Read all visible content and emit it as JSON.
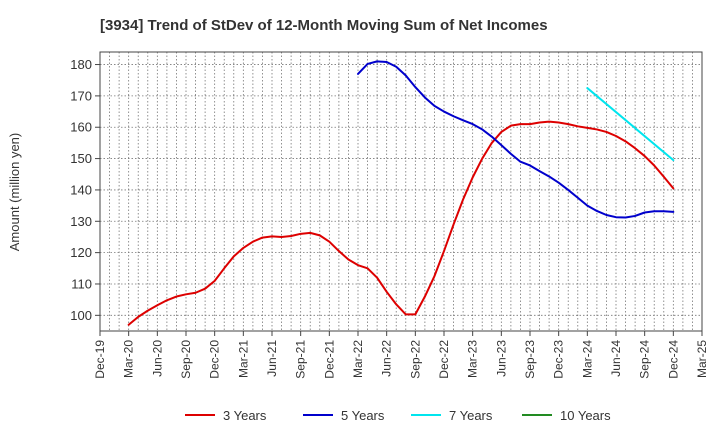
{
  "chart_data": {
    "type": "line",
    "title": "[3934]  Trend of StDev of 12-Month Moving Sum of Net Incomes",
    "xlabel": "",
    "ylabel": "Amount (million yen)",
    "ylim": [
      95,
      184
    ],
    "yticks": [
      100,
      110,
      120,
      130,
      140,
      150,
      160,
      170,
      180
    ],
    "xticks": [
      "Dec-19",
      "Mar-20",
      "Jun-20",
      "Sep-20",
      "Dec-20",
      "Mar-21",
      "Jun-21",
      "Sep-21",
      "Dec-21",
      "Mar-22",
      "Jun-22",
      "Sep-22",
      "Dec-22",
      "Mar-23",
      "Jun-23",
      "Sep-23",
      "Dec-23",
      "Mar-24",
      "Jun-24",
      "Sep-24",
      "Dec-24",
      "Mar-25"
    ],
    "grid": true,
    "legend_position": "bottom",
    "series": [
      {
        "name": "3 Years",
        "color": "#dd0000",
        "points": [
          [
            "Mar-20",
            97
          ],
          [
            "Apr-20",
            99.5
          ],
          [
            "May-20",
            101.5
          ],
          [
            "Jun-20",
            103.2
          ],
          [
            "Jul-20",
            104.8
          ],
          [
            "Aug-20",
            106
          ],
          [
            "Sep-20",
            106.7
          ],
          [
            "Oct-20",
            107.2
          ],
          [
            "Nov-20",
            108.5
          ],
          [
            "Dec-20",
            111
          ],
          [
            "Jan-21",
            115
          ],
          [
            "Feb-21",
            118.8
          ],
          [
            "Mar-21",
            121.5
          ],
          [
            "Apr-21",
            123.5
          ],
          [
            "May-21",
            124.8
          ],
          [
            "Jun-21",
            125.2
          ],
          [
            "Jul-21",
            125
          ],
          [
            "Aug-21",
            125.3
          ],
          [
            "Sep-21",
            126
          ],
          [
            "Oct-21",
            126.3
          ],
          [
            "Nov-21",
            125.5
          ],
          [
            "Dec-21",
            123.5
          ],
          [
            "Jan-22",
            120.5
          ],
          [
            "Feb-22",
            117.8
          ],
          [
            "Mar-22",
            116
          ],
          [
            "Apr-22",
            115
          ],
          [
            "May-22",
            112
          ],
          [
            "Jun-22",
            107.5
          ],
          [
            "Jul-22",
            103.5
          ],
          [
            "Aug-22",
            100.3
          ],
          [
            "Sep-22",
            100.3
          ],
          [
            "Oct-22",
            106
          ],
          [
            "Nov-22",
            112.5
          ],
          [
            "Dec-22",
            120.5
          ],
          [
            "Jan-23",
            129
          ],
          [
            "Feb-23",
            137
          ],
          [
            "Mar-23",
            144
          ],
          [
            "Apr-23",
            150
          ],
          [
            "May-23",
            155
          ],
          [
            "Jun-23",
            158.5
          ],
          [
            "Jul-23",
            160.5
          ],
          [
            "Aug-23",
            161
          ],
          [
            "Sep-23",
            161
          ],
          [
            "Oct-23",
            161.5
          ],
          [
            "Nov-23",
            161.8
          ],
          [
            "Dec-23",
            161.5
          ],
          [
            "Jan-24",
            161
          ],
          [
            "Feb-24",
            160.3
          ],
          [
            "Mar-24",
            159.8
          ],
          [
            "Apr-24",
            159.3
          ],
          [
            "May-24",
            158.5
          ],
          [
            "Jun-24",
            157.2
          ],
          [
            "Jul-24",
            155.5
          ],
          [
            "Aug-24",
            153.3
          ],
          [
            "Sep-24",
            150.8
          ],
          [
            "Oct-24",
            147.8
          ],
          [
            "Nov-24",
            144.2
          ],
          [
            "Dec-24",
            140.5
          ]
        ]
      },
      {
        "name": "5 Years",
        "color": "#0000cc",
        "points": [
          [
            "Mar-22",
            177
          ],
          [
            "Apr-22",
            180.2
          ],
          [
            "May-22",
            181
          ],
          [
            "Jun-22",
            180.8
          ],
          [
            "Jul-22",
            179.3
          ],
          [
            "Aug-22",
            176.5
          ],
          [
            "Sep-22",
            172.8
          ],
          [
            "Oct-22",
            169.5
          ],
          [
            "Nov-22",
            166.8
          ],
          [
            "Dec-22",
            165
          ],
          [
            "Jan-23",
            163.5
          ],
          [
            "Feb-23",
            162.2
          ],
          [
            "Mar-23",
            161
          ],
          [
            "Apr-23",
            159.3
          ],
          [
            "May-23",
            157
          ],
          [
            "Jun-23",
            154.3
          ],
          [
            "Jul-23",
            151.5
          ],
          [
            "Aug-23",
            149
          ],
          [
            "Sep-23",
            147.8
          ],
          [
            "Oct-23",
            146
          ],
          [
            "Nov-23",
            144.3
          ],
          [
            "Dec-23",
            142.3
          ],
          [
            "Jan-24",
            140
          ],
          [
            "Feb-24",
            137.5
          ],
          [
            "Mar-24",
            135
          ],
          [
            "Apr-24",
            133.3
          ],
          [
            "May-24",
            132
          ],
          [
            "Jun-24",
            131.3
          ],
          [
            "Jul-24",
            131.2
          ],
          [
            "Aug-24",
            131.7
          ],
          [
            "Sep-24",
            132.8
          ],
          [
            "Oct-24",
            133.2
          ],
          [
            "Nov-24",
            133.2
          ],
          [
            "Dec-24",
            133
          ]
        ]
      },
      {
        "name": "7 Years",
        "color": "#00e5ee",
        "points": [
          [
            "Mar-24",
            172.5
          ],
          [
            "Dec-24",
            149.5
          ]
        ]
      },
      {
        "name": "10 Years",
        "color": "#228b22",
        "points": []
      }
    ]
  }
}
